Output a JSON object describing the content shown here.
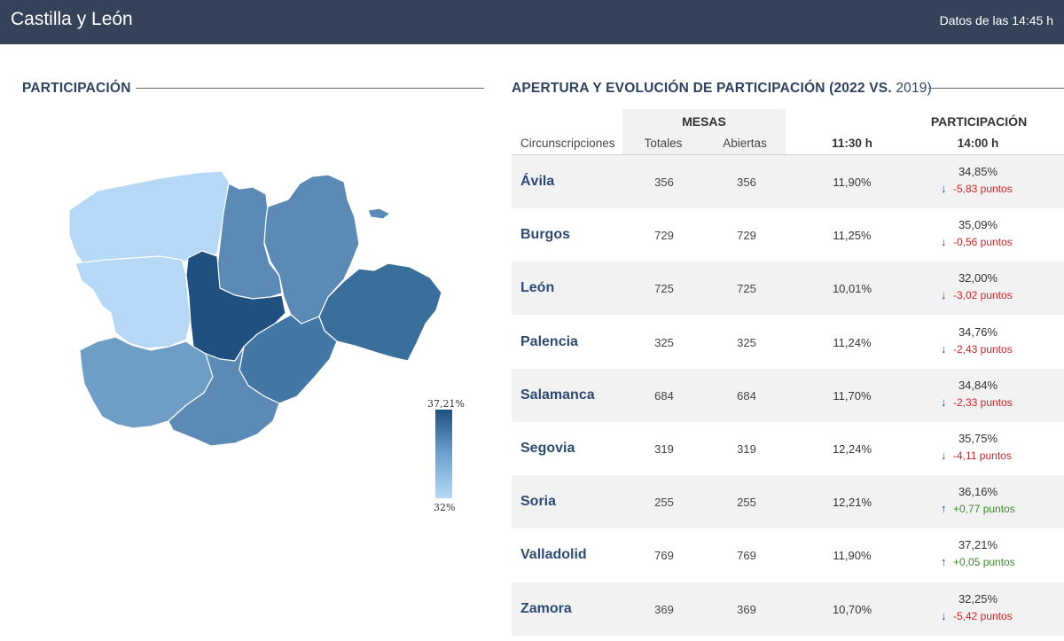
{
  "header": {
    "title": "Castilla y León",
    "timestamp": "Datos de las 14:45 h"
  },
  "map_section": {
    "title": "PARTICIPACIÓN",
    "legend_max": "37,21%",
    "legend_min": "32%",
    "colors": {
      "highest": "#1f5080",
      "high": "#3a6f9c",
      "mid": "#5a8ab5",
      "low": "#6e9dc6",
      "lowest": "#b4d8f5"
    }
  },
  "table_section": {
    "title_bold": "APERTURA Y EVOLUCIÓN DE PARTICIPACIÓN (2022 VS.",
    "title_light": " 2019)",
    "group_mesas": "MESAS",
    "group_participacion": "PARTICIPACIÓN",
    "col_circ": "Circunscripciones",
    "col_totales": "Totales",
    "col_abiertas": "Abiertas",
    "col_1130": "11:30 h",
    "col_1400": "14:00 h",
    "rows": [
      {
        "name": "Ávila",
        "totales": "356",
        "abiertas": "356",
        "p1130": "11,90%",
        "p1400": "34,85%",
        "delta": "-5,83 puntos",
        "dir": "down"
      },
      {
        "name": "Burgos",
        "totales": "729",
        "abiertas": "729",
        "p1130": "11,25%",
        "p1400": "35,09%",
        "delta": "-0,56 puntos",
        "dir": "down"
      },
      {
        "name": "León",
        "totales": "725",
        "abiertas": "725",
        "p1130": "10,01%",
        "p1400": "32,00%",
        "delta": "-3,02 puntos",
        "dir": "down"
      },
      {
        "name": "Palencia",
        "totales": "325",
        "abiertas": "325",
        "p1130": "11,24%",
        "p1400": "34,76%",
        "delta": "-2,43 puntos",
        "dir": "down"
      },
      {
        "name": "Salamanca",
        "totales": "684",
        "abiertas": "684",
        "p1130": "11,70%",
        "p1400": "34,84%",
        "delta": "-2,33 puntos",
        "dir": "down"
      },
      {
        "name": "Segovia",
        "totales": "319",
        "abiertas": "319",
        "p1130": "12,24%",
        "p1400": "35,75%",
        "delta": "-4,11 puntos",
        "dir": "down"
      },
      {
        "name": "Soria",
        "totales": "255",
        "abiertas": "255",
        "p1130": "12,21%",
        "p1400": "36,16%",
        "delta": "+0,77 puntos",
        "dir": "up"
      },
      {
        "name": "Valladolid",
        "totales": "769",
        "abiertas": "769",
        "p1130": "11,90%",
        "p1400": "37,21%",
        "delta": "+0,05 puntos",
        "dir": "up"
      },
      {
        "name": "Zamora",
        "totales": "369",
        "abiertas": "369",
        "p1130": "10,70%",
        "p1400": "32,25%",
        "delta": "-5,42 puntos",
        "dir": "down"
      }
    ]
  }
}
